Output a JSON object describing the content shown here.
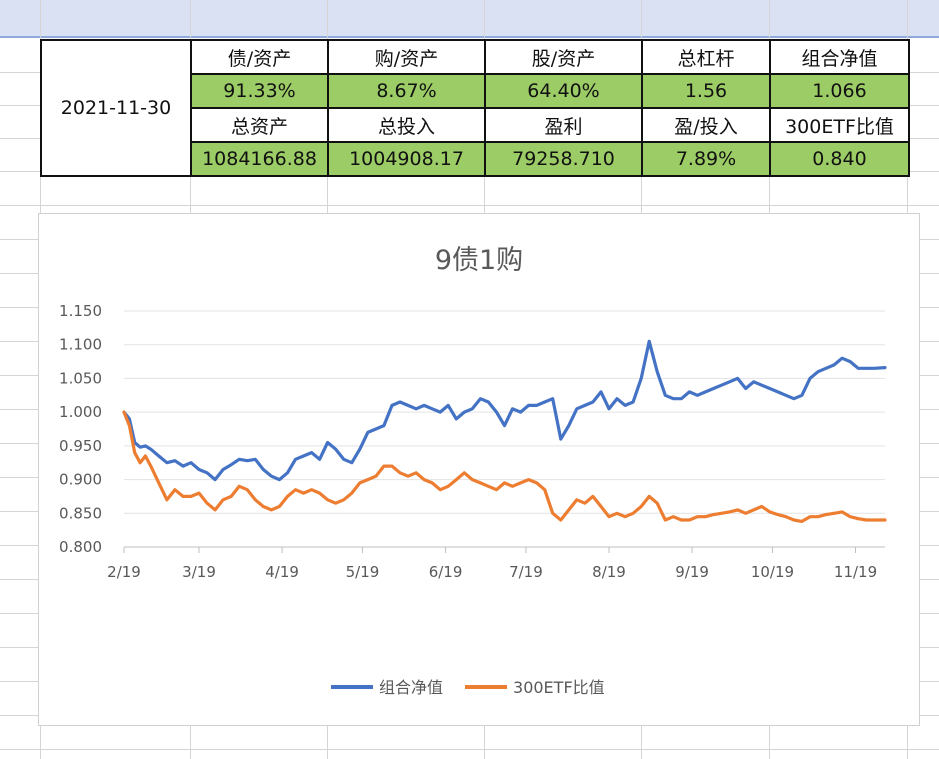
{
  "summary_table": {
    "date": "2021-11-30",
    "row1_headers": [
      "债/资产",
      "购/资产",
      "股/资产",
      "总杠杆",
      "组合净值"
    ],
    "row1_values": [
      "91.33%",
      "8.67%",
      "64.40%",
      "1.56",
      "1.066"
    ],
    "row2_headers": [
      "总资产",
      "总投入",
      "盈利",
      "盈/投入",
      "300ETF比值"
    ],
    "row2_values": [
      "1084166.88",
      "1004908.17",
      "79258.710",
      "7.89%",
      "0.840"
    ]
  },
  "chart_data": {
    "type": "line",
    "title": "9债1购",
    "ylim": [
      0.8,
      1.15
    ],
    "yticks": [
      "1.150",
      "1.100",
      "1.050",
      "1.000",
      "0.950",
      "0.900",
      "0.850",
      "0.800"
    ],
    "xticks": [
      "2/19",
      "3/19",
      "4/19",
      "5/19",
      "6/19",
      "7/19",
      "8/19",
      "9/19",
      "10/19",
      "11/19"
    ],
    "grid": true,
    "legend_position": "bottom",
    "series": [
      {
        "name": "组合净值",
        "color": "#4472c4",
        "x": [
          "2/19",
          "2/21",
          "2/23",
          "2/25",
          "2/27",
          "3/1",
          "3/4",
          "3/7",
          "3/10",
          "3/13",
          "3/16",
          "3/19",
          "3/22",
          "3/25",
          "3/28",
          "3/31",
          "4/3",
          "4/6",
          "4/9",
          "4/12",
          "4/15",
          "4/18",
          "4/21",
          "4/24",
          "4/27",
          "4/30",
          "5/3",
          "5/6",
          "5/9",
          "5/12",
          "5/15",
          "5/18",
          "5/21",
          "5/24",
          "5/27",
          "5/30",
          "6/2",
          "6/5",
          "6/8",
          "6/11",
          "6/14",
          "6/17",
          "6/20",
          "6/23",
          "6/26",
          "6/29",
          "7/2",
          "7/5",
          "7/8",
          "7/11",
          "7/14",
          "7/17",
          "7/20",
          "7/23",
          "7/26",
          "7/29",
          "8/1",
          "8/4",
          "8/7",
          "8/10",
          "8/13",
          "8/16",
          "8/19",
          "8/22",
          "8/25",
          "8/28",
          "8/31",
          "9/3",
          "9/6",
          "9/9",
          "9/12",
          "9/15",
          "9/18",
          "9/21",
          "9/24",
          "9/27",
          "9/30",
          "10/3",
          "10/6",
          "10/9",
          "10/12",
          "10/15",
          "10/18",
          "10/21",
          "10/24",
          "10/27",
          "10/30",
          "11/2",
          "11/5",
          "11/8",
          "11/11",
          "11/14",
          "11/17",
          "11/20",
          "11/23",
          "11/26",
          "11/30"
        ],
        "y": [
          1.0,
          0.99,
          0.955,
          0.948,
          0.95,
          0.945,
          0.935,
          0.925,
          0.928,
          0.92,
          0.925,
          0.915,
          0.91,
          0.9,
          0.915,
          0.922,
          0.93,
          0.928,
          0.93,
          0.915,
          0.905,
          0.9,
          0.91,
          0.93,
          0.935,
          0.94,
          0.93,
          0.955,
          0.945,
          0.93,
          0.925,
          0.945,
          0.97,
          0.975,
          0.98,
          1.01,
          1.015,
          1.01,
          1.005,
          1.01,
          1.005,
          1.0,
          1.01,
          0.99,
          1.0,
          1.005,
          1.02,
          1.015,
          1.0,
          0.98,
          1.005,
          1.0,
          1.01,
          1.01,
          1.015,
          1.02,
          0.96,
          0.98,
          1.005,
          1.01,
          1.015,
          1.03,
          1.005,
          1.02,
          1.01,
          1.015,
          1.05,
          1.105,
          1.06,
          1.025,
          1.02,
          1.02,
          1.03,
          1.025,
          1.03,
          1.035,
          1.04,
          1.045,
          1.05,
          1.035,
          1.045,
          1.04,
          1.035,
          1.03,
          1.025,
          1.02,
          1.025,
          1.05,
          1.06,
          1.065,
          1.07,
          1.08,
          1.075,
          1.065,
          1.065,
          1.065,
          1.066
        ]
      },
      {
        "name": "300ETF比值",
        "color": "#ed7d31",
        "x": [
          "2/19",
          "2/21",
          "2/23",
          "2/25",
          "2/27",
          "3/1",
          "3/4",
          "3/7",
          "3/10",
          "3/13",
          "3/16",
          "3/19",
          "3/22",
          "3/25",
          "3/28",
          "3/31",
          "4/3",
          "4/6",
          "4/9",
          "4/12",
          "4/15",
          "4/18",
          "4/21",
          "4/24",
          "4/27",
          "4/30",
          "5/3",
          "5/6",
          "5/9",
          "5/12",
          "5/15",
          "5/18",
          "5/21",
          "5/24",
          "5/27",
          "5/30",
          "6/2",
          "6/5",
          "6/8",
          "6/11",
          "6/14",
          "6/17",
          "6/20",
          "6/23",
          "6/26",
          "6/29",
          "7/2",
          "7/5",
          "7/8",
          "7/11",
          "7/14",
          "7/17",
          "7/20",
          "7/23",
          "7/26",
          "7/29",
          "8/1",
          "8/4",
          "8/7",
          "8/10",
          "8/13",
          "8/16",
          "8/19",
          "8/22",
          "8/25",
          "8/28",
          "8/31",
          "9/3",
          "9/6",
          "9/9",
          "9/12",
          "9/15",
          "9/18",
          "9/21",
          "9/24",
          "9/27",
          "9/30",
          "10/3",
          "10/6",
          "10/9",
          "10/12",
          "10/15",
          "10/18",
          "10/21",
          "10/24",
          "10/27",
          "10/30",
          "11/2",
          "11/5",
          "11/8",
          "11/11",
          "11/14",
          "11/17",
          "11/20",
          "11/23",
          "11/26",
          "11/30"
        ],
        "y": [
          1.0,
          0.98,
          0.94,
          0.925,
          0.935,
          0.92,
          0.895,
          0.87,
          0.885,
          0.875,
          0.875,
          0.88,
          0.865,
          0.855,
          0.87,
          0.875,
          0.89,
          0.885,
          0.87,
          0.86,
          0.855,
          0.86,
          0.875,
          0.885,
          0.88,
          0.885,
          0.88,
          0.87,
          0.865,
          0.87,
          0.88,
          0.895,
          0.9,
          0.905,
          0.92,
          0.92,
          0.91,
          0.905,
          0.91,
          0.9,
          0.895,
          0.885,
          0.89,
          0.9,
          0.91,
          0.9,
          0.895,
          0.89,
          0.885,
          0.895,
          0.89,
          0.895,
          0.9,
          0.895,
          0.885,
          0.85,
          0.84,
          0.855,
          0.87,
          0.865,
          0.875,
          0.86,
          0.845,
          0.85,
          0.845,
          0.85,
          0.86,
          0.875,
          0.865,
          0.84,
          0.845,
          0.84,
          0.84,
          0.845,
          0.845,
          0.848,
          0.85,
          0.852,
          0.855,
          0.85,
          0.855,
          0.86,
          0.852,
          0.848,
          0.845,
          0.84,
          0.838,
          0.845,
          0.845,
          0.848,
          0.85,
          0.852,
          0.845,
          0.842,
          0.84,
          0.84,
          0.84
        ]
      }
    ]
  }
}
